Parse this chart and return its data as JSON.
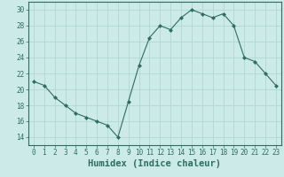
{
  "x": [
    0,
    1,
    2,
    3,
    4,
    5,
    6,
    7,
    8,
    9,
    10,
    11,
    12,
    13,
    14,
    15,
    16,
    17,
    18,
    19,
    20,
    21,
    22,
    23
  ],
  "y": [
    21,
    20.5,
    19,
    18,
    17,
    16.5,
    16,
    15.5,
    14,
    18.5,
    23,
    26.5,
    28,
    27.5,
    29,
    30,
    29.5,
    29,
    29.5,
    28,
    24,
    23.5,
    22,
    20.5
  ],
  "line_color": "#2d6e5e",
  "marker": "D",
  "marker_size": 2.0,
  "bg_color": "#cceae7",
  "grid_color": "#b0d8d4",
  "xlabel": "Humidex (Indice chaleur)",
  "xlabel_fontsize": 7.5,
  "xlim": [
    -0.5,
    23.5
  ],
  "ylim": [
    13,
    31
  ],
  "yticks": [
    14,
    16,
    18,
    20,
    22,
    24,
    26,
    28,
    30
  ],
  "xticks": [
    0,
    1,
    2,
    3,
    4,
    5,
    6,
    7,
    8,
    9,
    10,
    11,
    12,
    13,
    14,
    15,
    16,
    17,
    18,
    19,
    20,
    21,
    22,
    23
  ],
  "tick_fontsize": 5.5,
  "axis_color": "#2d6e5e",
  "spine_color": "#2d6e5e",
  "linewidth": 0.8
}
